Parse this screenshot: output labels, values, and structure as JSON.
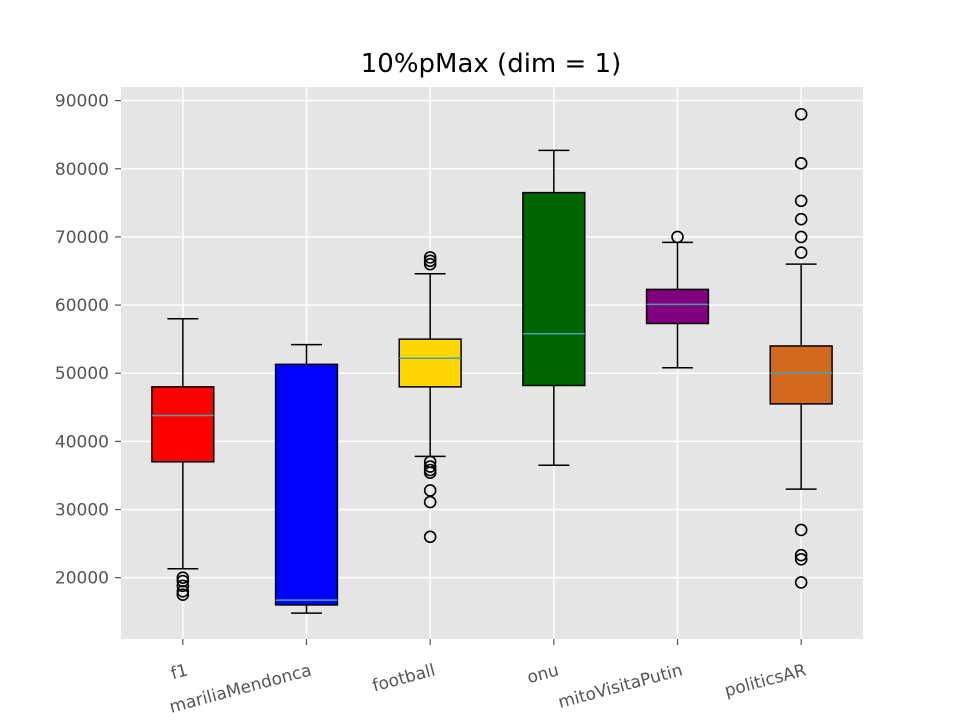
{
  "chart_data": {
    "type": "boxplot",
    "title": "10%pMax (dim = 1)",
    "xlabel": "",
    "ylabel": "",
    "ylim": [
      11000,
      92000
    ],
    "yticks": [
      20000,
      30000,
      40000,
      50000,
      60000,
      70000,
      80000,
      90000
    ],
    "ytick_labels": [
      "20000",
      "30000",
      "40000",
      "50000",
      "60000",
      "70000",
      "80000",
      "90000"
    ],
    "grid": true,
    "categories": [
      "f1",
      "mariliaMendonca",
      "football",
      "onu",
      "mitoVisitaPutin",
      "politicsAR"
    ],
    "boxes": [
      {
        "name": "f1",
        "color": "#ff0000",
        "whisker_low": 21300,
        "q1": 37000,
        "median": 43800,
        "q3": 48000,
        "whisker_high": 58000,
        "outliers": [
          20000,
          19500,
          18800,
          18000,
          17500
        ]
      },
      {
        "name": "mariliaMendonca",
        "color": "#0000ff",
        "whisker_low": 14800,
        "q1": 16000,
        "median": 16700,
        "q3": 51300,
        "whisker_high": 54200,
        "outliers": []
      },
      {
        "name": "football",
        "color": "#ffd700",
        "whisker_low": 37800,
        "q1": 48000,
        "median": 52200,
        "q3": 55000,
        "whisker_high": 64600,
        "outliers": [
          67000,
          66500,
          66000,
          37000,
          36300,
          35800,
          35400,
          32800,
          31100,
          26000
        ]
      },
      {
        "name": "onu",
        "color": "#006400",
        "whisker_low": 36500,
        "q1": 48200,
        "median": 55800,
        "q3": 76500,
        "whisker_high": 82700,
        "outliers": []
      },
      {
        "name": "mitoVisitaPutin",
        "color": "#800080",
        "whisker_low": 50800,
        "q1": 57300,
        "median": 60100,
        "q3": 62300,
        "whisker_high": 69200,
        "outliers": [
          70000
        ]
      },
      {
        "name": "politicsAR",
        "color": "#d2691e",
        "whisker_low": 33000,
        "q1": 45500,
        "median": 50000,
        "q3": 54000,
        "whisker_high": 66000,
        "outliers": [
          88000,
          80800,
          75300,
          72600,
          70000,
          67700,
          27000,
          23300,
          22700,
          19300
        ]
      }
    ],
    "median_color": "#4c9fa8"
  }
}
